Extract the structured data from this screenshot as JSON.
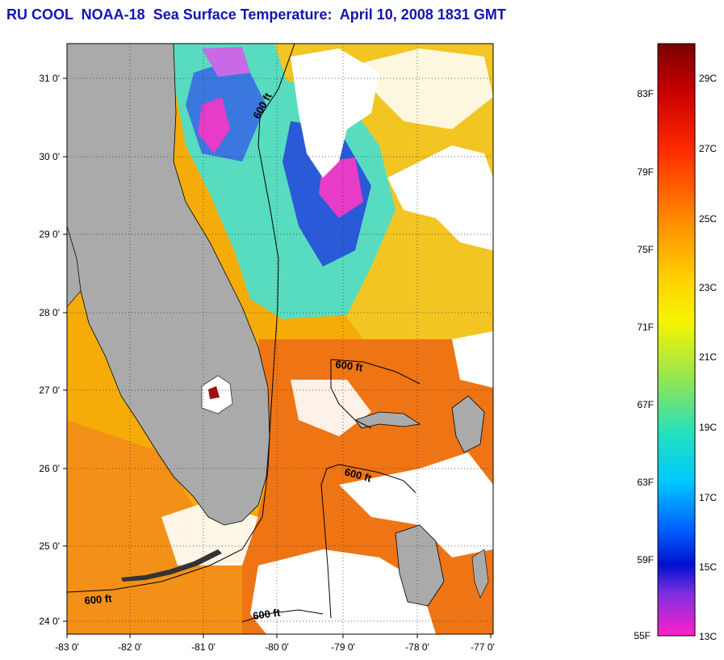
{
  "title": "RU COOL  NOAA-18  Sea Surface Temperature:  April 10, 2008 1831 GMT",
  "map": {
    "lat_ticks": [
      "31 0'",
      "30 0'",
      "29 0'",
      "28 0'",
      "27 0'",
      "26 0'",
      "25 0'",
      "24 0'"
    ],
    "lon_ticks": [
      "-83 0'",
      "-82 0'",
      "-81 0'",
      "-80 0'",
      "-79 0'",
      "-78 0'",
      "-77 0'"
    ],
    "isobath_labels": [
      "600 ft",
      "600 ft",
      "600 ft",
      "600 ft",
      "600 ft"
    ],
    "colors": {
      "land": "#aaaaaa",
      "cloud": "#ffffff",
      "warm": "#f5a800",
      "hot": "#ef6a10",
      "cool": "#44dccc"
    }
  },
  "colorbar": {
    "fahrenheit": [
      "83F",
      "79F",
      "75F",
      "71F",
      "67F",
      "63F",
      "59F",
      "55F"
    ],
    "celsius": [
      "29C",
      "27C",
      "25C",
      "23C",
      "21C",
      "19C",
      "17C",
      "15C",
      "13C"
    ]
  }
}
